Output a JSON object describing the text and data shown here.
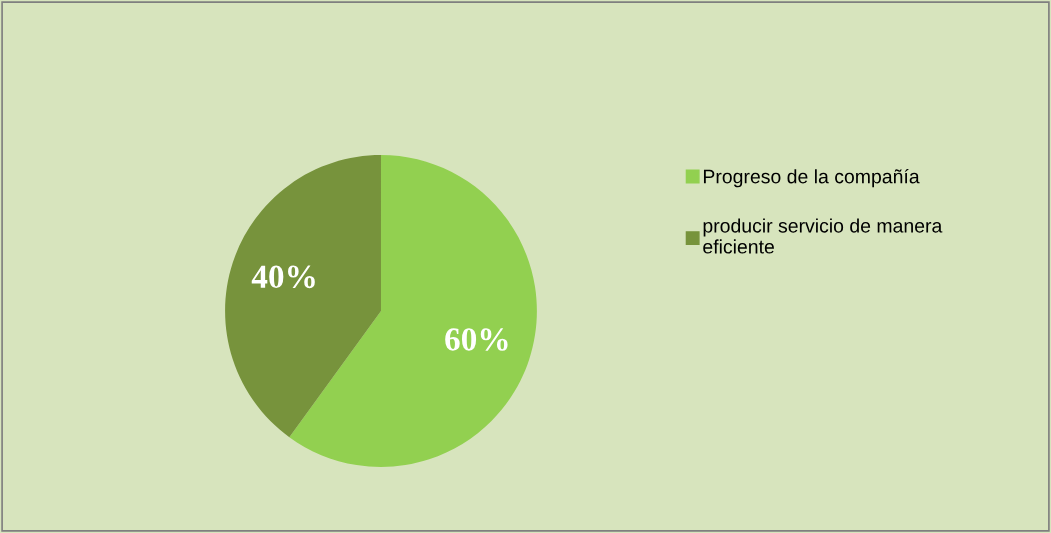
{
  "chart_data": {
    "type": "pie",
    "categories": [
      "Progreso de la compañía",
      "producir servicio de manera eficiente"
    ],
    "values": [
      60,
      40
    ],
    "colors": [
      "#92d050",
      "#77933c"
    ],
    "value_labels": [
      "60%",
      "40%"
    ],
    "legend": "right"
  }
}
